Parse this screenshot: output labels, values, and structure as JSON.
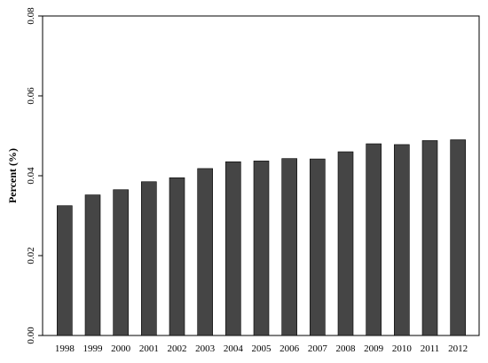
{
  "chart_data": {
    "type": "bar",
    "title": "",
    "xlabel": "",
    "ylabel": "Percent (%)",
    "categories": [
      "1998",
      "1999",
      "2000",
      "2001",
      "2002",
      "2003",
      "2004",
      "2005",
      "2006",
      "2007",
      "2008",
      "2009",
      "2010",
      "2011",
      "2012"
    ],
    "values": [
      0.0325,
      0.0352,
      0.0365,
      0.0385,
      0.0395,
      0.0418,
      0.0435,
      0.0437,
      0.0443,
      0.0442,
      0.046,
      0.048,
      0.0478,
      0.0488,
      0.049
    ],
    "ylim": [
      0,
      0.08
    ],
    "yticks": [
      "0.00",
      "0.02",
      "0.04",
      "0.06",
      "0.08"
    ],
    "grid": false,
    "legend": "none",
    "bar_color": "#454545",
    "bar_edge_color": "#000000"
  }
}
